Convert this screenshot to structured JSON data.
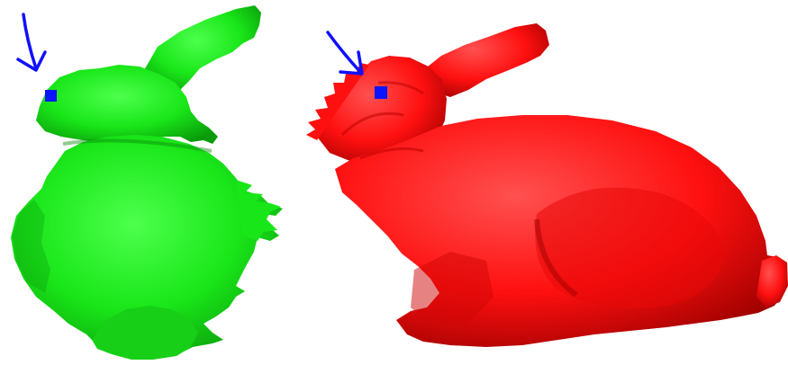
{
  "scene": {
    "background_color": "#ffffff",
    "models": [
      {
        "name": "bunny-green",
        "view": "back-three-quarter",
        "color": "#19e619",
        "shade_dark": "#0a9a0a",
        "shade_light": "#4dff4d"
      },
      {
        "name": "bunny-red",
        "view": "side-profile",
        "color": "#ff1010",
        "shade_dark": "#9b0000",
        "shade_light": "#ff5050"
      }
    ],
    "markers": [
      {
        "target": "bunny-green",
        "shape": "square",
        "color": "#0a14ff"
      },
      {
        "target": "bunny-red",
        "shape": "square",
        "color": "#0a14ff"
      }
    ],
    "arrows": [
      {
        "target": "bunny-green",
        "color": "#1010ff",
        "style": "hand-drawn"
      },
      {
        "target": "bunny-red",
        "color": "#1010ff",
        "style": "hand-drawn"
      }
    ]
  }
}
